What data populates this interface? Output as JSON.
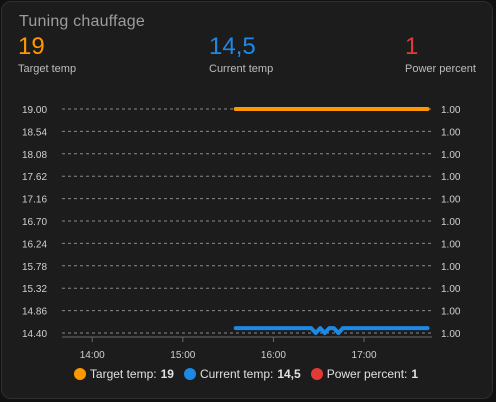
{
  "card": {
    "title": "Tuning chauffage"
  },
  "stats": [
    {
      "value": "19",
      "label": "Target temp",
      "color": "#ff9800"
    },
    {
      "value": "14,5",
      "label": "Current temp",
      "color": "#1e88e5"
    },
    {
      "value": "1",
      "label": "Power percent",
      "color": "#e53935"
    }
  ],
  "legend": [
    {
      "name": "Target temp:",
      "value": "19",
      "color": "#ff9800"
    },
    {
      "name": "Current temp:",
      "value": "14,5",
      "color": "#1e88e5"
    },
    {
      "name": "Power percent:",
      "value": "1",
      "color": "#e53935"
    }
  ],
  "chart_data": {
    "type": "line",
    "x_ticks": [
      "14:00",
      "15:00",
      "16:00",
      "17:00"
    ],
    "y_left_ticks": [
      "19.00",
      "18.54",
      "18.08",
      "17.62",
      "17.16",
      "16.70",
      "16.24",
      "15.78",
      "15.32",
      "14.86",
      "14.40"
    ],
    "y_right_ticks": [
      "1.00",
      "1.00",
      "1.00",
      "1.00",
      "1.00",
      "1.00",
      "1.00",
      "1.00",
      "1.00",
      "1.00",
      "1.00"
    ],
    "ylim_left": [
      14.4,
      19.0
    ],
    "xlim": [
      "13:40",
      "17:45"
    ],
    "grid": true,
    "legend_position": "bottom",
    "series": [
      {
        "name": "Target temp",
        "color": "#ff9800",
        "points": [
          [
            "15:35",
            19.0
          ],
          [
            "17:42",
            19.0
          ]
        ]
      },
      {
        "name": "Current temp",
        "color": "#1e88e5",
        "points": [
          [
            "15:35",
            14.5
          ],
          [
            "16:25",
            14.5
          ],
          [
            "16:28",
            14.4
          ],
          [
            "16:31",
            14.5
          ],
          [
            "16:34",
            14.4
          ],
          [
            "16:37",
            14.5
          ],
          [
            "16:40",
            14.5
          ],
          [
            "16:43",
            14.4
          ],
          [
            "16:46",
            14.5
          ],
          [
            "17:42",
            14.5
          ]
        ]
      }
    ]
  }
}
